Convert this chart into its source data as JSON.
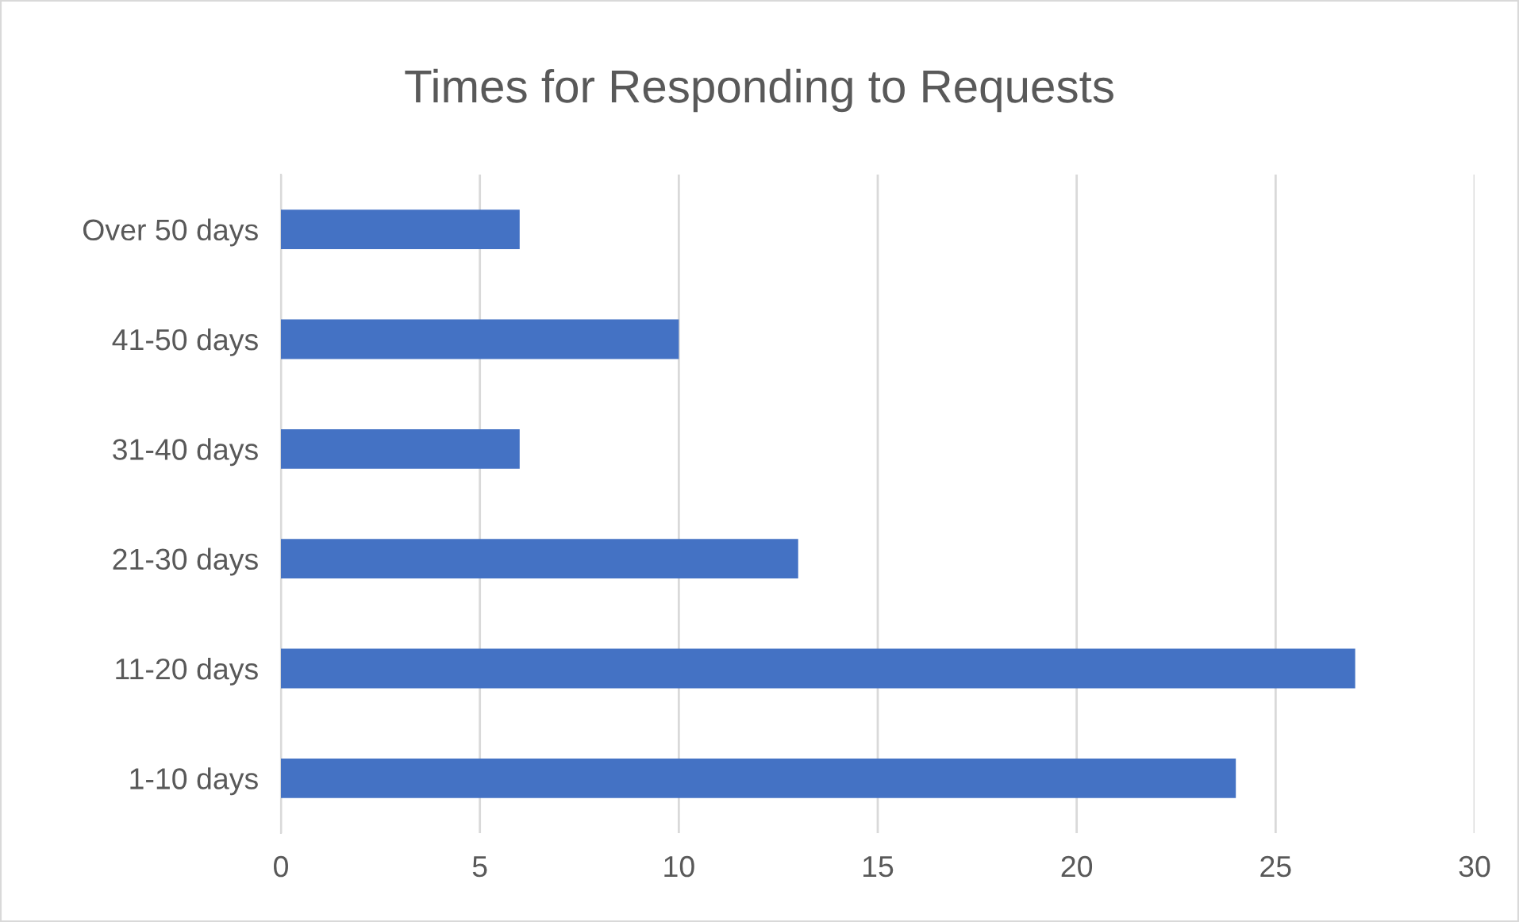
{
  "chart_data": {
    "type": "bar",
    "orientation": "horizontal",
    "title": "Times for Responding to Requests",
    "categories": [
      "Over 50 days",
      "41-50 days",
      "31-40 days",
      "21-30 days",
      "11-20 days",
      "1-10 days"
    ],
    "values": [
      6,
      10,
      6,
      13,
      27,
      24
    ],
    "color": "#4472c4",
    "xlim": [
      0,
      30
    ],
    "xticks": [
      0,
      5,
      10,
      15,
      20,
      25,
      30
    ],
    "grid": "x",
    "legend": false
  }
}
